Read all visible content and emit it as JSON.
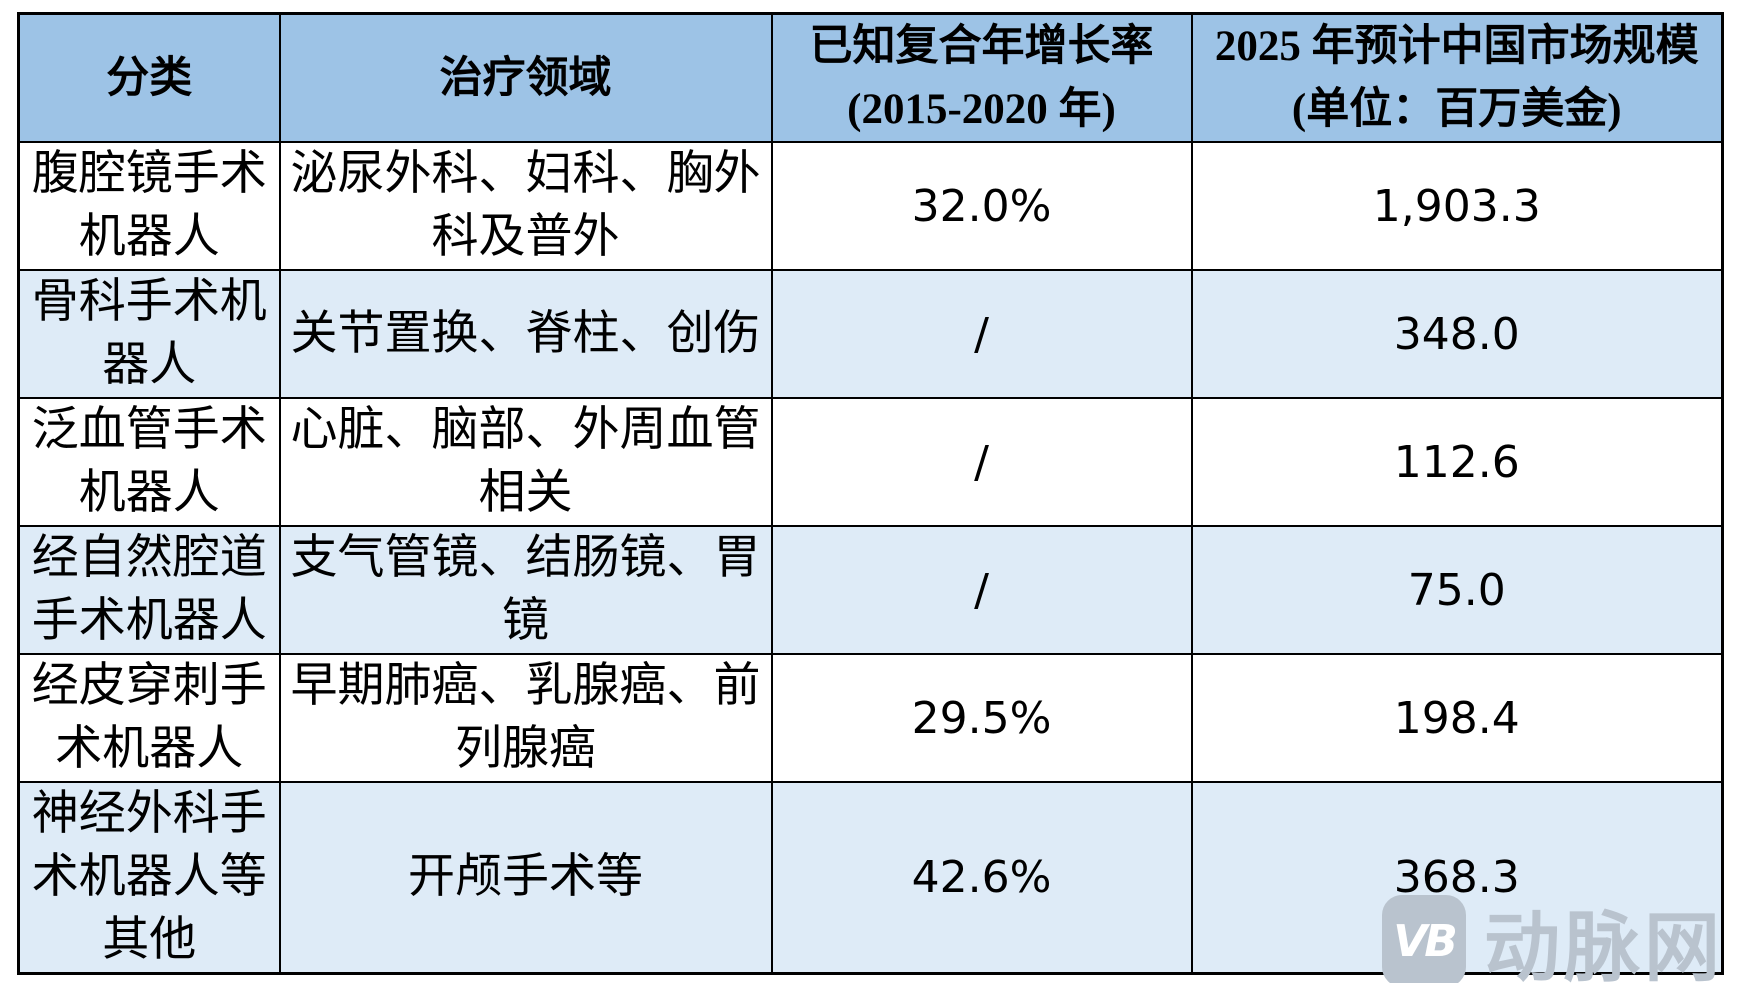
{
  "chart_data": {
    "type": "table",
    "title": "",
    "columns": [
      "分类",
      "治疗领域",
      "已知复合年增长率 (2015-2020 年)",
      "2025 年预计中国市场规模 (单位：百万美金)"
    ],
    "rows": [
      [
        "腹腔镜手术机器人",
        "泌尿外科、妇科、胸外科及普外",
        "32.0%",
        "1,903.3"
      ],
      [
        "骨科手术机器人",
        "关节置换、脊柱、创伤",
        "/",
        "348.0"
      ],
      [
        "泛血管手术机器人",
        "心脏、脑部、外周血管相关",
        "/",
        "112.6"
      ],
      [
        "经自然腔道手术机器人",
        "支气管镜、结肠镜、胃镜",
        "/",
        "75.0"
      ],
      [
        "经皮穿刺手术机器人",
        "早期肺癌、乳腺癌、前列腺癌",
        "29.5%",
        "198.4"
      ],
      [
        "神经外科手术机器人等其他",
        "开颅手术等",
        "42.6%",
        "368.3"
      ]
    ]
  },
  "header_display": {
    "category": "分类",
    "areas": "治疗领域",
    "cagr_line1": "已知复合年增长率",
    "cagr_line2": "(2015-2020 年)",
    "market_line1": "2025 年预计中国市场规模",
    "market_line2": "(单位：百万美金)"
  },
  "display_rows": [
    {
      "category": [
        "腹腔镜手术",
        "机器人"
      ],
      "areas": [
        "泌尿外科、妇科、胸外",
        "科及普外"
      ],
      "cagr": "32.0%",
      "market": "1,903.3"
    },
    {
      "category": [
        "骨科手术机",
        "器人"
      ],
      "areas": [
        "关节置换、脊柱、创伤"
      ],
      "cagr": "/",
      "market": "348.0"
    },
    {
      "category": [
        "泛血管手术",
        "机器人"
      ],
      "areas": [
        "心脏、脑部、外周血管",
        "相关"
      ],
      "cagr": "/",
      "market": "112.6"
    },
    {
      "category": [
        "经自然腔道",
        "手术机器人"
      ],
      "areas": [
        "支气管镜、结肠镜、胃",
        "镜"
      ],
      "cagr": "/",
      "market": "75.0"
    },
    {
      "category": [
        "经皮穿刺手",
        "术机器人"
      ],
      "areas": [
        "早期肺癌、乳腺癌、前",
        "列腺癌"
      ],
      "cagr": "29.5%",
      "market": "198.4"
    },
    {
      "category": [
        "神经外科手",
        "术机器人等",
        "其他"
      ],
      "areas": [
        "开颅手术等"
      ],
      "cagr": "42.6%",
      "market": "368.3"
    }
  ],
  "watermark": {
    "logo_text": "VB",
    "brand_text": "动脉网"
  },
  "colors": {
    "header_bg": "#9DC3E6",
    "alt_row_bg": "#DEEBF7",
    "row_bg": "#FFFFFF",
    "border": "#000000",
    "watermark_gray": "#B9C3CE"
  }
}
